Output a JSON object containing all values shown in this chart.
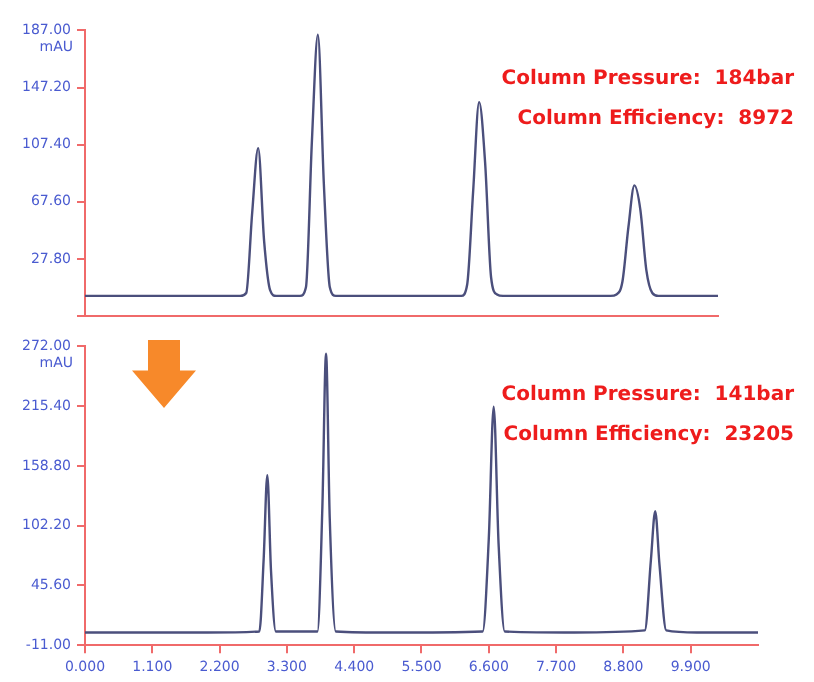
{
  "chart_data": [
    {
      "type": "line",
      "ylabel": "mAU",
      "categories": [
        null,
        null,
        null,
        null,
        null,
        null,
        null,
        null,
        null,
        null,
        null,
        null,
        null,
        null,
        null,
        null,
        null,
        null,
        null,
        null,
        null,
        null,
        null,
        null,
        null,
        null,
        null,
        null,
        null,
        null,
        null,
        null,
        null,
        null,
        null,
        null,
        null,
        null,
        null,
        null,
        null,
        null,
        null,
        null,
        null,
        null,
        null,
        null,
        null,
        null,
        null,
        null,
        null,
        null,
        null,
        null,
        null,
        null,
        null,
        null,
        null,
        null,
        null,
        null,
        null,
        null,
        null,
        null,
        null,
        null,
        null,
        null,
        null,
        null,
        null,
        null,
        null,
        null,
        null,
        null,
        null,
        null,
        null,
        null,
        null,
        null,
        null,
        null,
        null,
        null,
        null,
        null,
        null,
        null,
        null,
        null,
        null,
        null,
        null,
        null,
        null,
        null,
        null,
        null,
        null,
        null,
        null
      ],
      "series": [
        {
          "color": "#4b4f7c",
          "values": [
            2,
            2,
            2,
            2,
            2,
            2,
            2,
            2,
            2,
            2,
            2,
            2,
            2,
            2,
            2,
            2,
            2,
            2,
            2,
            2,
            2,
            2,
            2,
            2,
            2,
            2,
            2,
            4,
            60,
            105,
            40,
            6,
            2,
            2,
            2,
            2,
            2,
            8,
            110,
            184,
            80,
            8,
            2,
            2,
            2,
            2,
            2,
            2,
            2,
            2,
            2,
            2,
            2,
            2,
            2,
            2,
            2,
            2,
            2,
            2,
            2,
            2,
            2,
            2,
            10,
            75,
            137,
            95,
            15,
            3,
            2,
            2,
            2,
            2,
            2,
            2,
            2,
            2,
            2,
            2,
            2,
            2,
            2,
            2,
            2,
            2,
            2,
            2,
            2,
            3,
            12,
            50,
            79,
            62,
            20,
            4,
            2,
            2,
            2,
            2,
            2,
            2,
            2,
            2,
            2,
            2,
            2
          ]
        }
      ],
      "ylim": [
        -12,
        187
      ],
      "yticks": [
        {
          "value": -12,
          "label": null
        },
        {
          "value": 27.8,
          "label": "27.80"
        },
        {
          "value": 67.6,
          "label": "67.60"
        },
        {
          "value": 107.4,
          "label": "107.40"
        },
        {
          "value": 147.2,
          "label": "147.20"
        },
        {
          "value": 187,
          "label": "187.00"
        }
      ],
      "tick_labels": "y",
      "grid": false,
      "marker": "none",
      "legend": false,
      "annotations": [
        "Column Pressure:  184bar",
        "Column Efficiency:  8972"
      ]
    },
    {
      "type": "line",
      "ylabel": "mAU",
      "x": [
        0,
        1,
        2,
        2.85,
        2.92,
        2.98,
        3.04,
        3.12,
        3.8,
        3.88,
        3.94,
        4.0,
        4.1,
        5,
        6.5,
        6.6,
        6.68,
        6.76,
        6.86,
        8,
        9.15,
        9.25,
        9.32,
        9.39,
        9.5,
        10,
        11
      ],
      "series": [
        {
          "color": "#4b4f7c",
          "values": [
            1,
            1,
            1,
            2,
            70,
            150,
            60,
            2,
            2,
            120,
            265,
            110,
            2,
            1,
            2,
            90,
            215,
            85,
            2,
            1,
            3,
            70,
            116,
            65,
            3,
            1,
            1
          ]
        }
      ],
      "xlim": [
        0,
        11
      ],
      "xticks": [
        {
          "value": 0,
          "label": "0.000"
        },
        {
          "value": 1.1,
          "label": "1.100"
        },
        {
          "value": 2.2,
          "label": "2.200"
        },
        {
          "value": 3.3,
          "label": "3.300"
        },
        {
          "value": 4.4,
          "label": "4.400"
        },
        {
          "value": 5.5,
          "label": "5.500"
        },
        {
          "value": 6.6,
          "label": "6.600"
        },
        {
          "value": 7.7,
          "label": "7.700"
        },
        {
          "value": 8.8,
          "label": "8.800"
        },
        {
          "value": 9.9,
          "label": "9.900"
        }
      ],
      "ylim": [
        -11,
        272
      ],
      "yticks": [
        {
          "value": -11,
          "label": "-11.00"
        },
        {
          "value": 45.6,
          "label": "45.60"
        },
        {
          "value": 102.2,
          "label": "102.20"
        },
        {
          "value": 158.8,
          "label": "158.80"
        },
        {
          "value": 215.4,
          "label": "215.40"
        },
        {
          "value": 272,
          "label": "272.00"
        }
      ],
      "grid": false,
      "marker": "none",
      "legend": false,
      "annotations": [
        "Column Pressure:  141bar",
        "Column Efficiency:  23205"
      ]
    }
  ]
}
